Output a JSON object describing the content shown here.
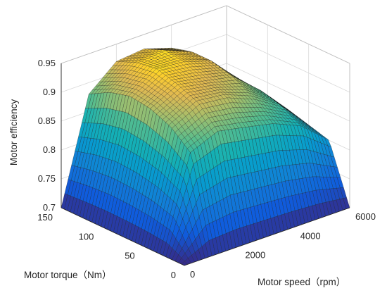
{
  "chart_data": {
    "type": "surface",
    "title": "",
    "xlabel": "Motor speed（rpm）",
    "ylabel": "Motor torque（Nm）",
    "zlabel": "Motor efficiency",
    "xlim": [
      0,
      6000
    ],
    "ylim": [
      0,
      150
    ],
    "zlim": [
      0.7,
      0.95
    ],
    "x_ticks": [
      "0",
      "2000",
      "4000",
      "6000"
    ],
    "y_ticks": [
      "0",
      "50",
      "100",
      "150"
    ],
    "z_ticks": [
      "0.7",
      "0.75",
      "0.8",
      "0.85",
      "0.9",
      "0.95"
    ],
    "grid": true,
    "colormap": "parula",
    "x": [
      0,
      1000,
      2000,
      3000,
      4000,
      5000,
      6000
    ],
    "y": [
      0,
      25,
      50,
      75,
      100,
      125,
      150
    ],
    "z": [
      [
        0.7,
        0.7,
        0.7,
        0.7,
        0.7,
        0.7,
        0.7
      ],
      [
        0.7,
        0.86,
        0.88,
        0.87,
        0.86,
        0.84,
        0.8
      ],
      [
        0.7,
        0.89,
        0.915,
        0.91,
        0.89,
        0.86,
        0.81
      ],
      [
        0.7,
        0.905,
        0.93,
        0.92,
        0.91,
        0.87,
        0.82
      ],
      [
        0.7,
        0.91,
        0.94,
        0.935,
        0.92,
        0.87,
        0.82
      ],
      [
        0.7,
        0.9,
        0.935,
        0.94,
        0.92,
        0.87,
        0.82
      ],
      [
        0.7,
        0.88,
        0.92,
        0.925,
        0.91,
        0.86,
        0.81
      ]
    ]
  }
}
